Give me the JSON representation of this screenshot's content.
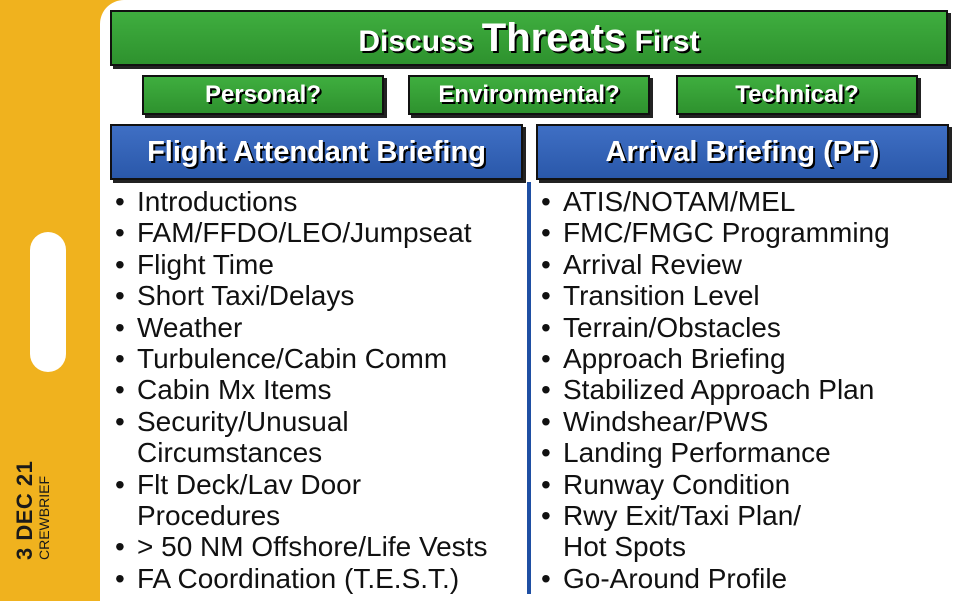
{
  "side": {
    "date": "3 DEC 21",
    "brand": "CREWBRIEF"
  },
  "title": {
    "pre": "Discuss ",
    "emph": "Threats",
    "post": " First"
  },
  "threats": [
    "Personal?",
    "Environmental?",
    "Technical?"
  ],
  "left": {
    "heading": "Flight Attendant Briefing",
    "items": [
      [
        "Introductions"
      ],
      [
        "FAM/FFDO/LEO/Jumpseat"
      ],
      [
        "Flight Time"
      ],
      [
        "Short Taxi/Delays"
      ],
      [
        "Weather"
      ],
      [
        "Turbulence/Cabin Comm"
      ],
      [
        "Cabin Mx Items"
      ],
      [
        "Security/Unusual",
        "Circumstances"
      ],
      [
        "Flt Deck/Lav Door",
        "Procedures"
      ],
      [
        "> 50 NM Offshore/Life Vests"
      ],
      [
        "FA Coordination (T.E.S.T.)"
      ]
    ]
  },
  "right": {
    "heading": "Arrival Briefing (PF)",
    "items": [
      [
        "ATIS/NOTAM/MEL"
      ],
      [
        "FMC/FMGC Programming"
      ],
      [
        "Arrival Review"
      ],
      [
        "Transition Level"
      ],
      [
        "Terrain/Obstacles"
      ],
      [
        "Approach Briefing"
      ],
      [
        "Stabilized Approach Plan"
      ],
      [
        "Windshear/PWS"
      ],
      [
        "Landing Performance"
      ],
      [
        "Runway Condition"
      ],
      [
        "Rwy Exit/Taxi Plan/",
        "Hot Spots"
      ],
      [
        "Go-Around Profile"
      ]
    ]
  },
  "colors": {
    "background": "#F0B21E",
    "green": "#2e922e",
    "blue": "#2a58aa"
  }
}
